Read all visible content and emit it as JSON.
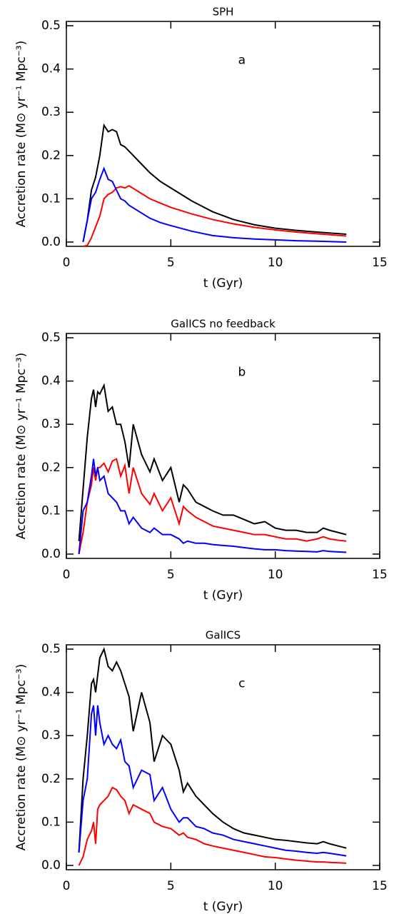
{
  "chart_data": [
    {
      "type": "line",
      "title": "SPH",
      "annotation": "a",
      "x_label": "t (Gyr)",
      "y_label": "Accretion rate (M⊙ yr⁻¹ Mpc⁻³)",
      "x": [
        0.8,
        1.0,
        1.2,
        1.4,
        1.6,
        1.8,
        2.0,
        2.2,
        2.4,
        2.6,
        2.8,
        3.0,
        3.5,
        4,
        4.5,
        5,
        6,
        7,
        8,
        9,
        10,
        11,
        12,
        13.4
      ],
      "series": [
        {
          "color": "#000000",
          "values": [
            0.0,
            0.05,
            0.12,
            0.15,
            0.2,
            0.27,
            0.255,
            0.26,
            0.255,
            0.225,
            0.22,
            0.21,
            0.185,
            0.16,
            0.14,
            0.125,
            0.095,
            0.07,
            0.052,
            0.04,
            0.032,
            0.027,
            0.023,
            0.018
          ]
        },
        {
          "color": "#ff0000",
          "values": [
            -0.01,
            -0.008,
            0.01,
            0.035,
            0.06,
            0.1,
            0.11,
            0.115,
            0.125,
            0.128,
            0.125,
            0.13,
            0.115,
            0.1,
            0.09,
            0.08,
            0.065,
            0.052,
            0.042,
            0.034,
            0.028,
            0.023,
            0.019,
            0.014
          ]
        },
        {
          "color": "#0000ff",
          "values": [
            0.0,
            0.05,
            0.1,
            0.115,
            0.145,
            0.17,
            0.145,
            0.14,
            0.12,
            0.1,
            0.095,
            0.085,
            0.07,
            0.055,
            0.045,
            0.038,
            0.025,
            0.015,
            0.01,
            0.007,
            0.005,
            0.003,
            0.002,
            0.0
          ]
        }
      ],
      "xlim": [
        0,
        15
      ],
      "xticks": [
        0,
        5,
        10,
        15
      ],
      "ylim": [
        -0.01,
        0.51
      ],
      "yticks": [
        {
          "value": 0,
          "label": "0.0"
        },
        0.1,
        0.2,
        0.3,
        0.4,
        0.5
      ]
    },
    {
      "type": "line",
      "title": "GalICS no feedback",
      "annotation": "b",
      "x_label": "t (Gyr)",
      "y_label": "Accretion rate (M⊙ yr⁻¹ Mpc⁻³)",
      "x": [
        0.6,
        0.8,
        1.0,
        1.2,
        1.3,
        1.4,
        1.5,
        1.6,
        1.8,
        2.0,
        2.2,
        2.4,
        2.6,
        2.8,
        3.0,
        3.2,
        3.6,
        4.0,
        4.2,
        4.6,
        5.0,
        5.4,
        5.6,
        5.8,
        6.2,
        6.6,
        7,
        7.5,
        8,
        8.5,
        9,
        9.5,
        10,
        10.5,
        11,
        11.5,
        12,
        12.3,
        12.6,
        13,
        13.4
      ],
      "series": [
        {
          "color": "#000000",
          "values": [
            0.03,
            0.15,
            0.27,
            0.36,
            0.38,
            0.34,
            0.375,
            0.37,
            0.39,
            0.33,
            0.34,
            0.3,
            0.3,
            0.26,
            0.2,
            0.3,
            0.23,
            0.19,
            0.22,
            0.17,
            0.2,
            0.12,
            0.16,
            0.15,
            0.12,
            0.11,
            0.1,
            0.09,
            0.09,
            0.08,
            0.07,
            0.075,
            0.06,
            0.055,
            0.055,
            0.05,
            0.05,
            0.06,
            0.055,
            0.05,
            0.045
          ]
        },
        {
          "color": "#ff0000",
          "values": [
            0.0,
            0.05,
            0.12,
            0.16,
            0.2,
            0.17,
            0.2,
            0.2,
            0.21,
            0.19,
            0.215,
            0.22,
            0.18,
            0.205,
            0.14,
            0.2,
            0.14,
            0.115,
            0.14,
            0.1,
            0.13,
            0.07,
            0.11,
            0.1,
            0.085,
            0.075,
            0.065,
            0.06,
            0.055,
            0.05,
            0.045,
            0.045,
            0.04,
            0.035,
            0.035,
            0.03,
            0.035,
            0.04,
            0.035,
            0.032,
            0.03
          ]
        },
        {
          "color": "#0000ff",
          "values": [
            0.0,
            0.1,
            0.12,
            0.18,
            0.22,
            0.18,
            0.2,
            0.17,
            0.18,
            0.14,
            0.13,
            0.12,
            0.1,
            0.1,
            0.07,
            0.085,
            0.06,
            0.05,
            0.06,
            0.045,
            0.045,
            0.035,
            0.025,
            0.03,
            0.025,
            0.025,
            0.022,
            0.02,
            0.018,
            0.015,
            0.012,
            0.01,
            0.01,
            0.008,
            0.007,
            0.006,
            0.005,
            0.008,
            0.006,
            0.005,
            0.004
          ]
        }
      ],
      "xlim": [
        0,
        15
      ],
      "xticks": [
        0,
        5,
        10,
        15
      ],
      "ylim": [
        -0.01,
        0.51
      ],
      "yticks": [
        {
          "value": 0,
          "label": "0.0"
        },
        0.1,
        0.2,
        0.3,
        0.4,
        0.5
      ]
    },
    {
      "type": "line",
      "title": "GalICS",
      "annotation": "c",
      "x_label": "t (Gyr)",
      "y_label": "Accretion rate (M⊙ yr⁻¹ Mpc⁻³)",
      "x": [
        0.6,
        0.8,
        1.0,
        1.2,
        1.3,
        1.4,
        1.5,
        1.6,
        1.8,
        2.0,
        2.2,
        2.4,
        2.6,
        2.8,
        3.0,
        3.2,
        3.6,
        4.0,
        4.2,
        4.6,
        5.0,
        5.4,
        5.6,
        5.8,
        6.2,
        6.6,
        7,
        7.5,
        8,
        8.5,
        9,
        9.5,
        10,
        10.5,
        11,
        11.5,
        12,
        12.3,
        12.6,
        13,
        13.4
      ],
      "series": [
        {
          "color": "#000000",
          "values": [
            0.03,
            0.2,
            0.3,
            0.42,
            0.43,
            0.4,
            0.44,
            0.48,
            0.5,
            0.46,
            0.45,
            0.47,
            0.45,
            0.42,
            0.39,
            0.31,
            0.4,
            0.33,
            0.24,
            0.3,
            0.28,
            0.22,
            0.17,
            0.19,
            0.16,
            0.14,
            0.12,
            0.1,
            0.085,
            0.075,
            0.07,
            0.065,
            0.06,
            0.058,
            0.055,
            0.052,
            0.05,
            0.055,
            0.05,
            0.045,
            0.04
          ]
        },
        {
          "color": "#0000ff",
          "values": [
            0.03,
            0.15,
            0.2,
            0.35,
            0.37,
            0.3,
            0.37,
            0.33,
            0.28,
            0.3,
            0.28,
            0.27,
            0.29,
            0.24,
            0.23,
            0.18,
            0.22,
            0.21,
            0.15,
            0.18,
            0.13,
            0.1,
            0.11,
            0.11,
            0.09,
            0.085,
            0.075,
            0.07,
            0.06,
            0.055,
            0.05,
            0.045,
            0.04,
            0.035,
            0.033,
            0.03,
            0.028,
            0.03,
            0.028,
            0.025,
            0.022
          ]
        },
        {
          "color": "#ff0000",
          "values": [
            0.0,
            0.02,
            0.06,
            0.08,
            0.1,
            0.05,
            0.13,
            0.14,
            0.15,
            0.16,
            0.18,
            0.175,
            0.16,
            0.15,
            0.12,
            0.14,
            0.13,
            0.12,
            0.1,
            0.09,
            0.085,
            0.07,
            0.075,
            0.065,
            0.06,
            0.05,
            0.045,
            0.04,
            0.035,
            0.03,
            0.025,
            0.02,
            0.018,
            0.015,
            0.012,
            0.01,
            0.008,
            0.008,
            0.007,
            0.006,
            0.005
          ]
        }
      ],
      "xlim": [
        0,
        15
      ],
      "xticks": [
        0,
        5,
        10,
        15
      ],
      "ylim": [
        -0.01,
        0.51
      ],
      "yticks": [
        {
          "value": 0,
          "label": "0.0"
        },
        0.1,
        0.2,
        0.3,
        0.4,
        0.5
      ]
    }
  ]
}
